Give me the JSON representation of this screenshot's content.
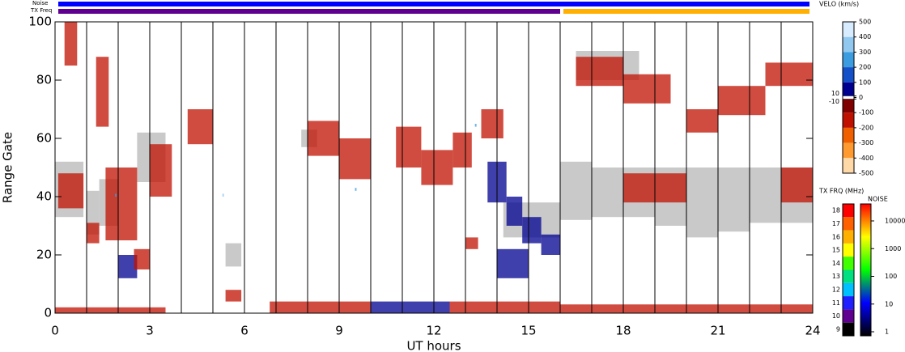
{
  "chart_data": {
    "type": "range-time",
    "noise_label": "Noise",
    "txfreq_label": "TX Freq",
    "xlabel": "UT hours",
    "ylabel": "Range Gate",
    "xlim": [
      0,
      24
    ],
    "ylim": [
      0,
      100
    ],
    "xticks": [
      0,
      3,
      6,
      9,
      12,
      15,
      18,
      21,
      24
    ],
    "yticks": [
      0,
      20,
      40,
      60,
      80,
      100
    ],
    "hour_lines": [
      1,
      2,
      3,
      4,
      5,
      6,
      7,
      8,
      9,
      10,
      11,
      12,
      13,
      14,
      15,
      16,
      17,
      18,
      19,
      20,
      21,
      22,
      23
    ],
    "ground_scatter_color": "#c0c0c0",
    "ground_scatter": [
      [
        0,
        0.9,
        33,
        52
      ],
      [
        1.0,
        1.4,
        27,
        42
      ],
      [
        1.4,
        2.0,
        30,
        46
      ],
      [
        2.6,
        3.5,
        45,
        62
      ],
      [
        5.4,
        5.9,
        16,
        24
      ],
      [
        7.8,
        8.3,
        57,
        63
      ],
      [
        14.2,
        16,
        26,
        38
      ],
      [
        16,
        17,
        32,
        52
      ],
      [
        17,
        19,
        33,
        50
      ],
      [
        19,
        20,
        30,
        50
      ],
      [
        20,
        21,
        26,
        50
      ],
      [
        21,
        22,
        28,
        50
      ],
      [
        22,
        24,
        31,
        50
      ],
      [
        16.5,
        18.5,
        80,
        90
      ]
    ],
    "echoes": [
      [
        0.1,
        0.9,
        36,
        48,
        -100
      ],
      [
        0.3,
        0.7,
        85,
        100,
        -100
      ],
      [
        1.0,
        1.4,
        24,
        31,
        -100
      ],
      [
        1.3,
        1.7,
        64,
        88,
        -100
      ],
      [
        1.6,
        2.6,
        25,
        50,
        -100
      ],
      [
        2.0,
        2.6,
        12,
        20,
        100
      ],
      [
        2.5,
        3.0,
        15,
        22,
        -100
      ],
      [
        3.0,
        3.7,
        40,
        58,
        -100
      ],
      [
        4.2,
        5.0,
        58,
        70,
        -100
      ],
      [
        5.4,
        5.9,
        4,
        8,
        -100
      ],
      [
        8.0,
        9.0,
        54,
        66,
        -100
      ],
      [
        9.0,
        10.0,
        46,
        60,
        -100
      ],
      [
        10.8,
        11.6,
        50,
        64,
        -100
      ],
      [
        11.6,
        12.6,
        44,
        56,
        -100
      ],
      [
        12.6,
        13.2,
        50,
        62,
        -100
      ],
      [
        13.0,
        13.4,
        22,
        26,
        -100
      ],
      [
        13.5,
        14.2,
        60,
        70,
        -100
      ],
      [
        13.7,
        14.3,
        38,
        52,
        100
      ],
      [
        14.3,
        14.8,
        30,
        40,
        100
      ],
      [
        14.8,
        15.4,
        24,
        33,
        100
      ],
      [
        15.4,
        16,
        20,
        27,
        100
      ],
      [
        14.0,
        15.0,
        12,
        22,
        100
      ],
      [
        0,
        3.5,
        0,
        2,
        -100
      ],
      [
        6.8,
        10,
        0,
        4,
        -100
      ],
      [
        10,
        12.5,
        0,
        4,
        100
      ],
      [
        12.5,
        16,
        0,
        4,
        -100
      ],
      [
        16,
        24,
        0,
        3,
        -100
      ],
      [
        16.5,
        18,
        78,
        88,
        -100
      ],
      [
        18,
        19.5,
        72,
        82,
        -100
      ],
      [
        20,
        21,
        62,
        70,
        -100
      ],
      [
        21,
        22.5,
        68,
        78,
        -100
      ],
      [
        22.5,
        24,
        78,
        86,
        -100
      ],
      [
        23,
        24,
        38,
        50,
        -100
      ],
      [
        18,
        20,
        38,
        48,
        -100
      ],
      [
        1.9,
        1.95,
        40,
        41,
        300
      ],
      [
        5.3,
        5.35,
        40,
        41,
        400
      ],
      [
        9.5,
        9.55,
        42,
        43,
        300
      ],
      [
        13.3,
        13.35,
        64,
        65,
        300
      ]
    ],
    "noise_bar": [
      [
        0,
        24,
        10
      ]
    ],
    "txfreq_bar": [
      [
        0,
        16,
        10
      ],
      [
        16,
        24,
        16
      ]
    ],
    "velocity_scale": {
      "title": "VELO (km/s)",
      "ticks": [
        500,
        400,
        300,
        200,
        100,
        10,
        0,
        -10,
        -100,
        -200,
        -300,
        -400,
        -500
      ],
      "colors": [
        "#d8ecff",
        "#90c8f0",
        "#3c9ce0",
        "#1450c8",
        "#000090",
        "#800000",
        "#c01000",
        "#f06000",
        "#ff9a30",
        "#ffd8a8"
      ]
    },
    "txfreq_scale": {
      "title": "TX FRQ (MHz)",
      "ticks": [
        18,
        17,
        16,
        15,
        14,
        13,
        12,
        11,
        10,
        9
      ],
      "colors": [
        "#ff0000",
        "#ff6000",
        "#ffb000",
        "#ffff00",
        "#40ff00",
        "#00e080",
        "#00c0ff",
        "#2020ff",
        "#600090",
        "#000000"
      ]
    },
    "noise_scale": {
      "title": "NOISE",
      "ticks": [
        10000,
        1000,
        100,
        10,
        1
      ],
      "colors": [
        "#ff0000",
        "#ffff00",
        "#00ff00",
        "#0000ff",
        "#000000"
      ]
    }
  }
}
